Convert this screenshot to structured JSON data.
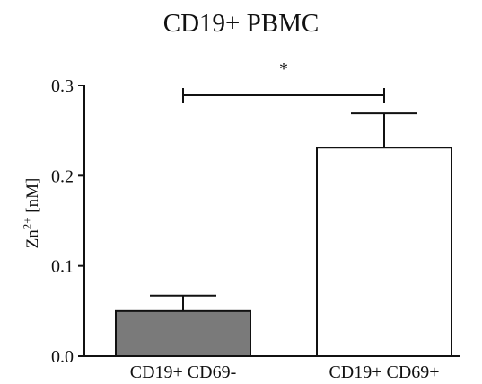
{
  "chart_data": {
    "type": "bar",
    "title": "CD19+ PBMC",
    "ylabel": {
      "base": "Zn",
      "superscript": "2+",
      "unit": " [nM]"
    },
    "categories": [
      "CD19+ CD69-",
      "CD19+ CD69+"
    ],
    "values": [
      0.05,
      0.231
    ],
    "error_upper": [
      0.067,
      0.269
    ],
    "bar_colors": [
      "#7a7a7a",
      "#ffffff"
    ],
    "ylim": [
      0,
      0.3
    ],
    "yticks": [
      "0.0",
      "0.1",
      "0.2",
      "0.3"
    ],
    "significance": {
      "label": "*",
      "between": [
        0,
        1
      ]
    },
    "grid": false
  }
}
